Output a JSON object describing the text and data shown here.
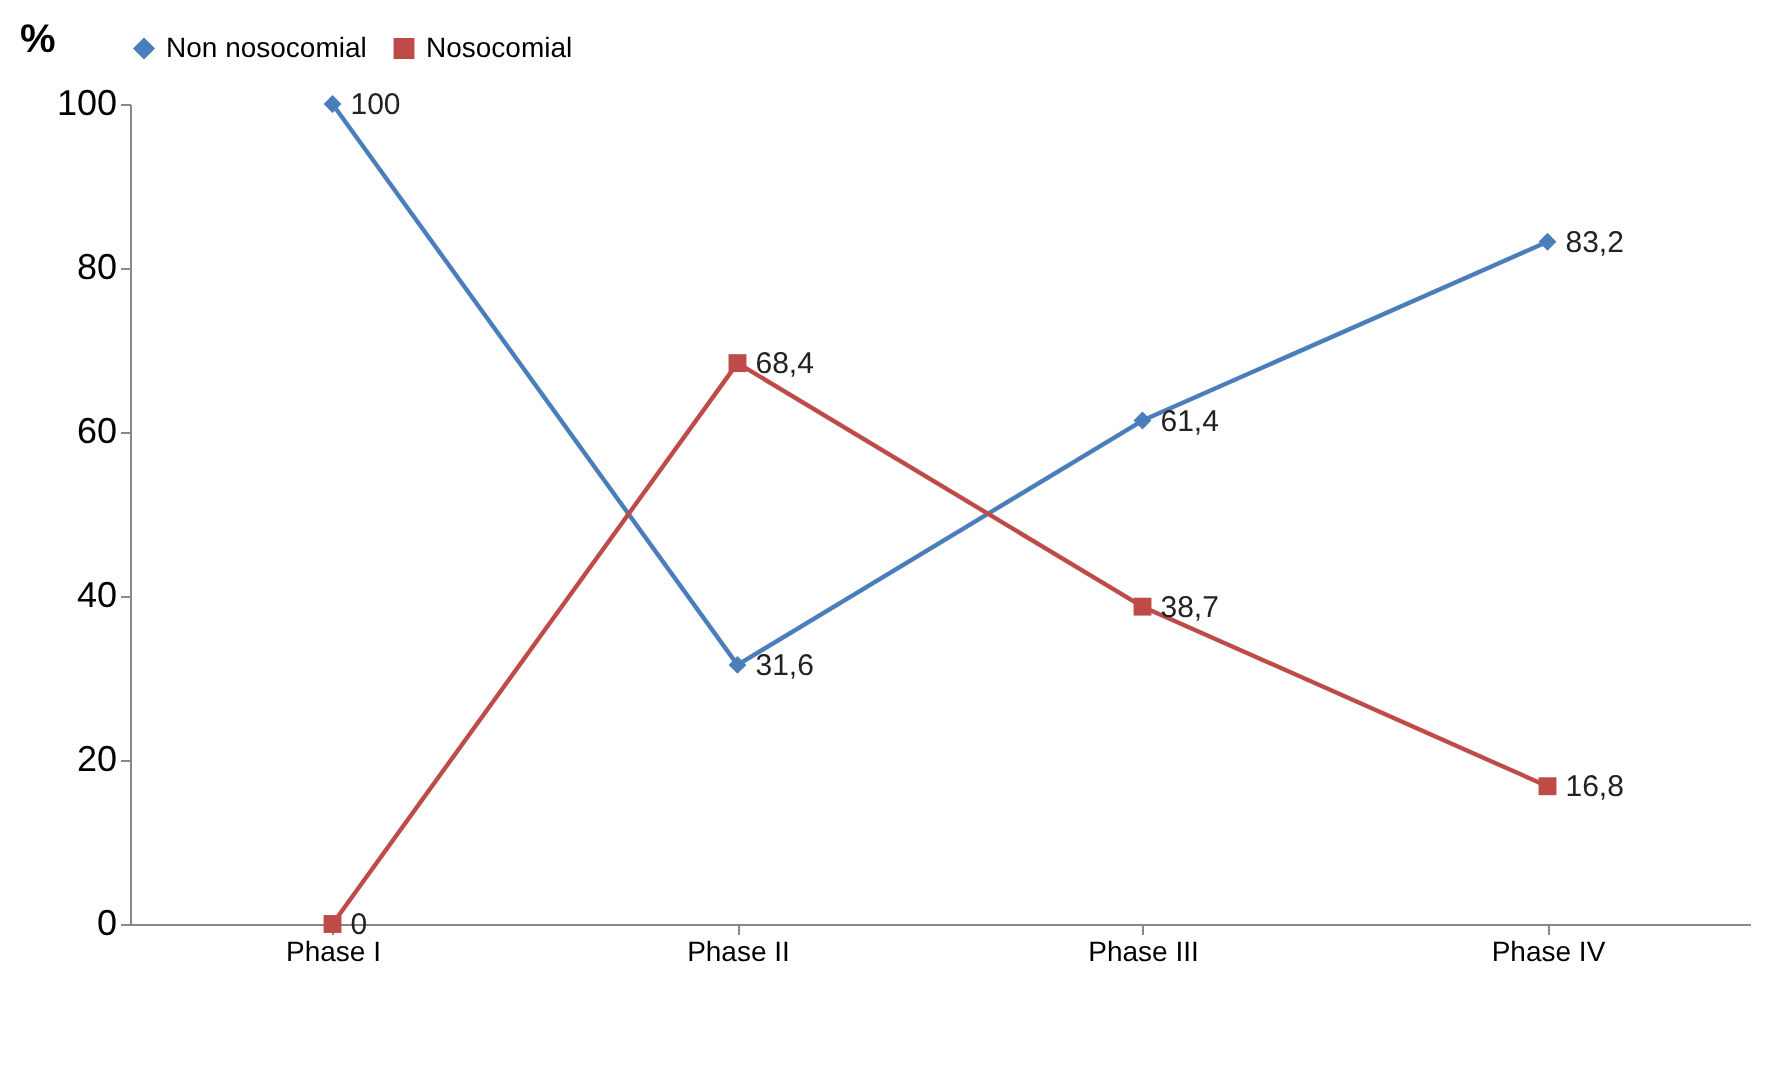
{
  "chart_data": {
    "type": "line",
    "ylabel": "%",
    "categories": [
      "Phase I",
      "Phase II",
      "Phase III",
      "Phase IV"
    ],
    "series": [
      {
        "name": "Non nosocomial",
        "color": "#4a7ebb",
        "marker": "diamond",
        "values": [
          100,
          31.6,
          61.4,
          83.2
        ],
        "value_labels": [
          "100",
          "31,6",
          "61,4",
          "83,2"
        ]
      },
      {
        "name": "Nosocomial",
        "color": "#be4b48",
        "marker": "square",
        "values": [
          0,
          68.4,
          38.7,
          16.8
        ],
        "value_labels": [
          "0",
          "68,4",
          "38,7",
          "16,8"
        ]
      }
    ],
    "ylim": [
      0,
      100
    ],
    "yticks": [
      0,
      20,
      40,
      60,
      80,
      100
    ],
    "grid": false,
    "legend": "top"
  }
}
